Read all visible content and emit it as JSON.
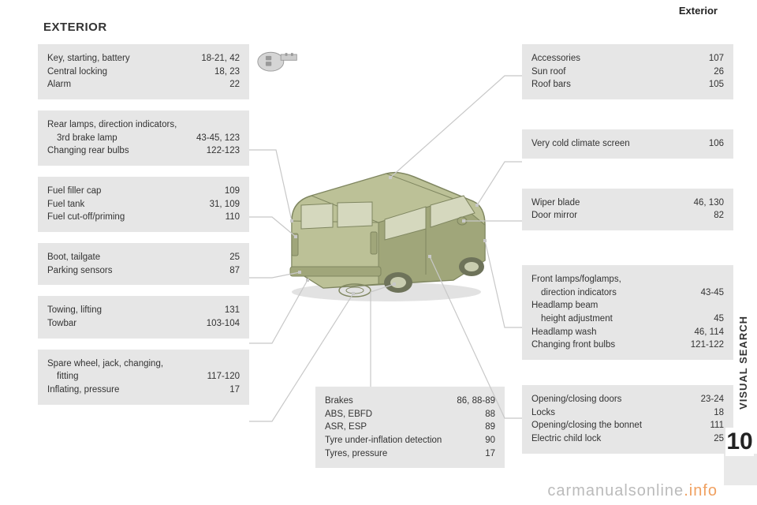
{
  "header": {
    "section": "Exterior",
    "title": "EXTERIOR"
  },
  "sidebar": {
    "label": "VISUAL SEARCH",
    "chapter": "10"
  },
  "watermark": {
    "a": "carmanualsonline",
    "b": ".info"
  },
  "left_boxes": [
    {
      "rows": [
        {
          "label": "Key, starting, battery",
          "value": "18-21, 42"
        },
        {
          "label": "Central locking",
          "value": "18, 23"
        },
        {
          "label": "Alarm",
          "value": "22"
        }
      ]
    },
    {
      "rows": [
        {
          "label": "Rear lamps, direction indicators,"
        },
        {
          "label": "3rd brake lamp",
          "indent": true,
          "value": "43-45, 123"
        },
        {
          "label": "Changing rear bulbs",
          "value": "122-123"
        }
      ]
    },
    {
      "rows": [
        {
          "label": "Fuel filler cap",
          "value": "109"
        },
        {
          "label": "Fuel tank",
          "value": "31, 109"
        },
        {
          "label": "Fuel cut-off/priming",
          "value": "110"
        }
      ]
    },
    {
      "rows": [
        {
          "label": "Boot, tailgate",
          "value": "25"
        },
        {
          "label": "Parking sensors",
          "value": "87"
        }
      ]
    },
    {
      "rows": [
        {
          "label": "Towing, lifting",
          "value": "131"
        },
        {
          "label": "Towbar",
          "value": "103-104"
        }
      ]
    },
    {
      "rows": [
        {
          "label": "Spare wheel, jack, changing,"
        },
        {
          "label": "fitting",
          "indent": true,
          "value": "117-120"
        },
        {
          "label": "Inflating, pressure",
          "value": "17"
        }
      ]
    }
  ],
  "right_boxes": [
    {
      "rows": [
        {
          "label": "Accessories",
          "value": "107"
        },
        {
          "label": "Sun roof",
          "value": "26"
        },
        {
          "label": "Roof bars",
          "value": "105"
        }
      ],
      "gap_after": 24
    },
    {
      "rows": [
        {
          "label": "Very cold climate screen",
          "value": "106"
        }
      ],
      "gap_after": 24
    },
    {
      "rows": [
        {
          "label": "Wiper blade",
          "value": "46, 130"
        },
        {
          "label": "Door mirror",
          "value": "82"
        }
      ],
      "gap_after": 30
    },
    {
      "rows": [
        {
          "label": "Front lamps/foglamps,"
        },
        {
          "label": "direction indicators",
          "indent": true,
          "value": "43-45"
        },
        {
          "label": "Headlamp beam"
        },
        {
          "label": "height adjustment",
          "indent": true,
          "value": "45"
        },
        {
          "label": "Headlamp wash",
          "value": "46, 114"
        },
        {
          "label": "Changing front bulbs",
          "value": "121-122"
        }
      ],
      "gap_after": 18
    },
    {
      "rows": [
        {
          "label": "Opening/closing doors",
          "value": "23-24"
        },
        {
          "label": "Locks",
          "value": "18"
        },
        {
          "label": "Opening/closing the bonnet",
          "value": "111"
        },
        {
          "label": "Electric child lock",
          "value": "25"
        }
      ]
    }
  ],
  "center_box": {
    "rows": [
      {
        "label": "Brakes",
        "value": "86, 88-89"
      },
      {
        "label": "ABS, EBFD",
        "value": "88"
      },
      {
        "label": "ASR, ESP",
        "value": "89"
      },
      {
        "label": "Tyre under-inflation detection",
        "value": "90"
      },
      {
        "label": "Tyres, pressure",
        "value": "17"
      }
    ]
  },
  "vehicle_style": {
    "fill": "#bcc197",
    "fill_dark": "#a0a67a",
    "stroke": "#7f8660",
    "window": "#d5d8be",
    "wheel_outer": "#6e735a",
    "wheel_inner": "#c9cdb0"
  },
  "leader_color": "#c8c8c8"
}
